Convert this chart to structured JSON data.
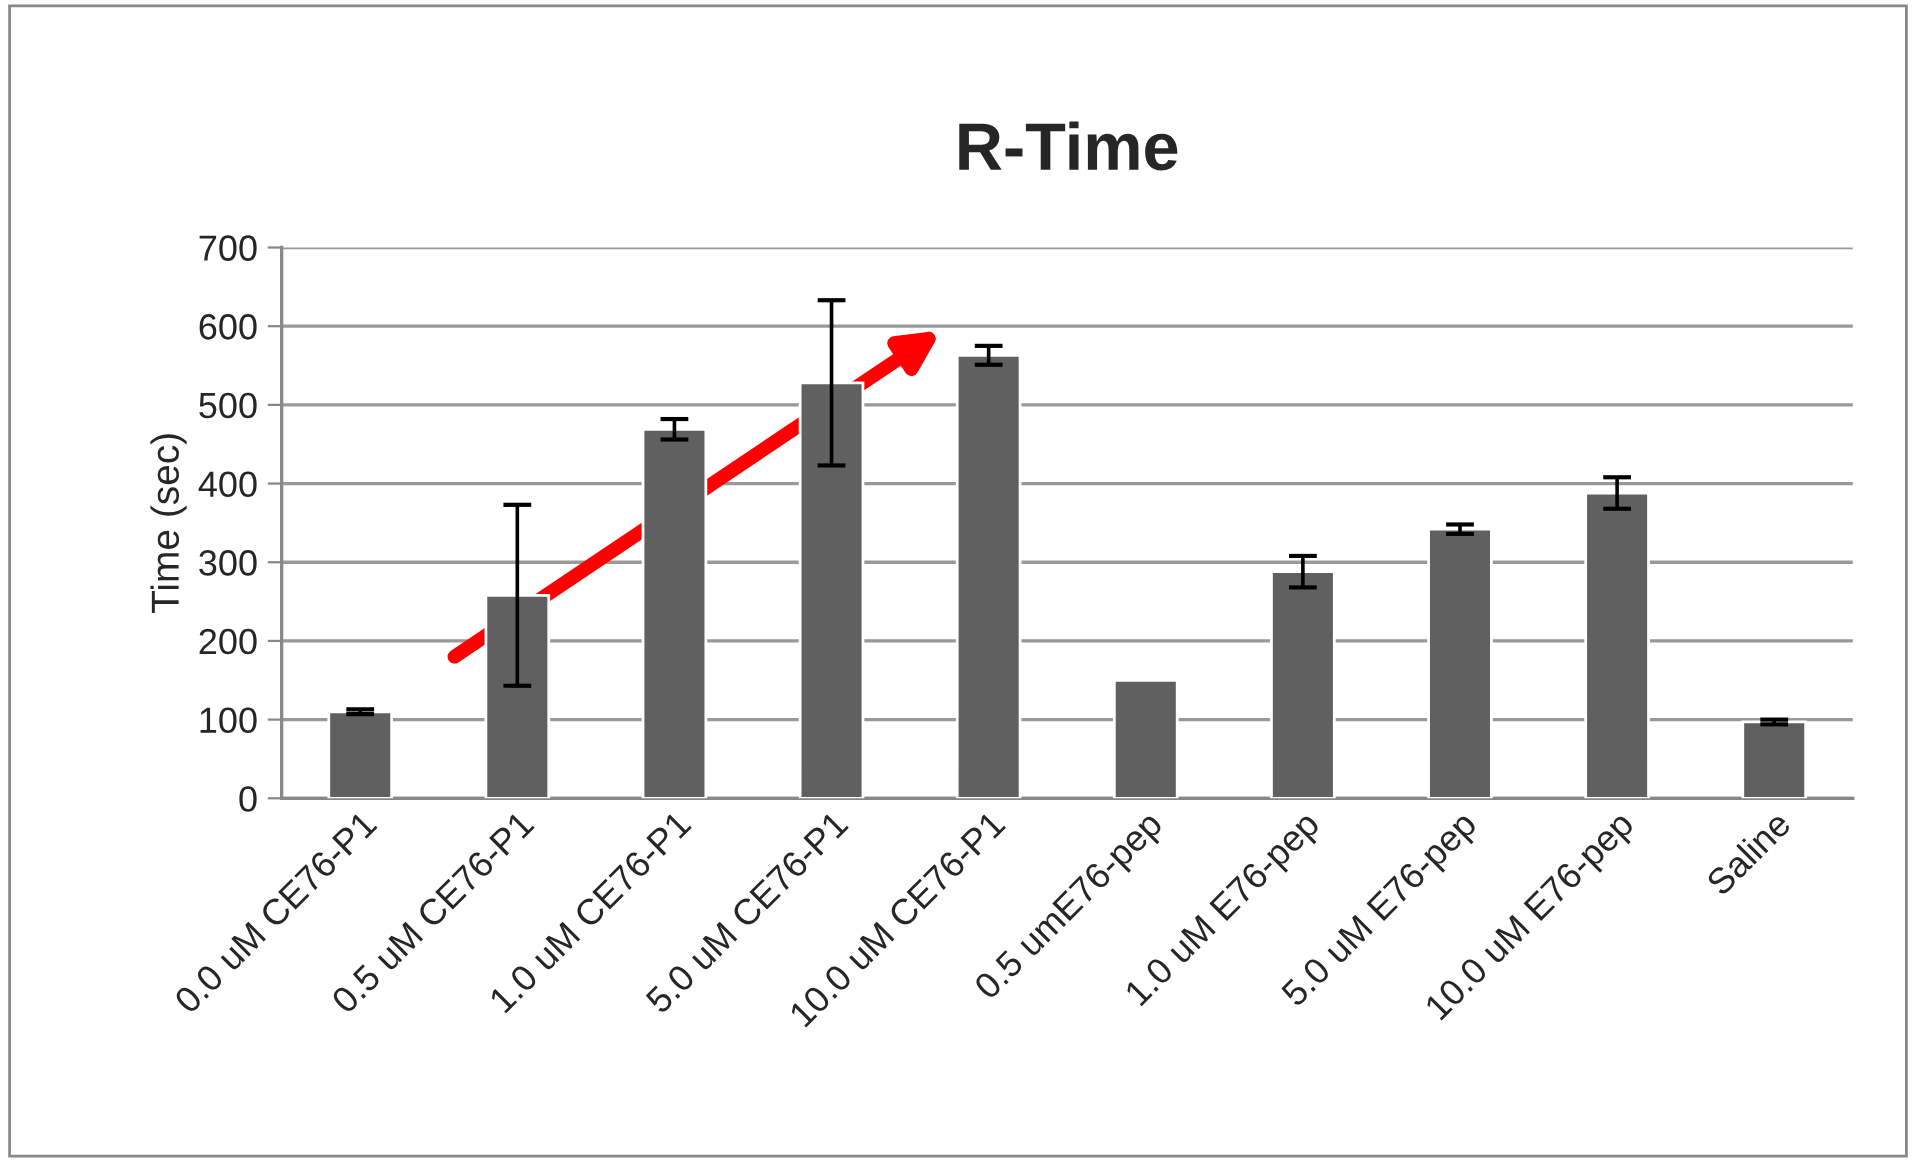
{
  "chart_data": {
    "type": "bar",
    "title": "R-Time",
    "ylabel": "Time (sec)",
    "categories": [
      "0.0 uM CE76-P1",
      "0.5 uM CE76-P1",
      "1.0 uM CE76-P1",
      "5.0 uM CE76-P1",
      "10.0 uM CE76-P1",
      "0.5 umE76-pep",
      "1.0 uM E76-pep",
      "5.0 uM E76-pep",
      "10.0 uM E76-pep",
      "Saline"
    ],
    "values": [
      110,
      258,
      469,
      528,
      563,
      150,
      288,
      342,
      388,
      97
    ],
    "errors": [
      3,
      115,
      13,
      105,
      12,
      null,
      20,
      6,
      20,
      3
    ],
    "color": "#606060",
    "ylim": [
      0,
      700
    ],
    "yticks": [
      0,
      100,
      200,
      300,
      400,
      500,
      600,
      700
    ],
    "grid": "y",
    "legend": false
  }
}
